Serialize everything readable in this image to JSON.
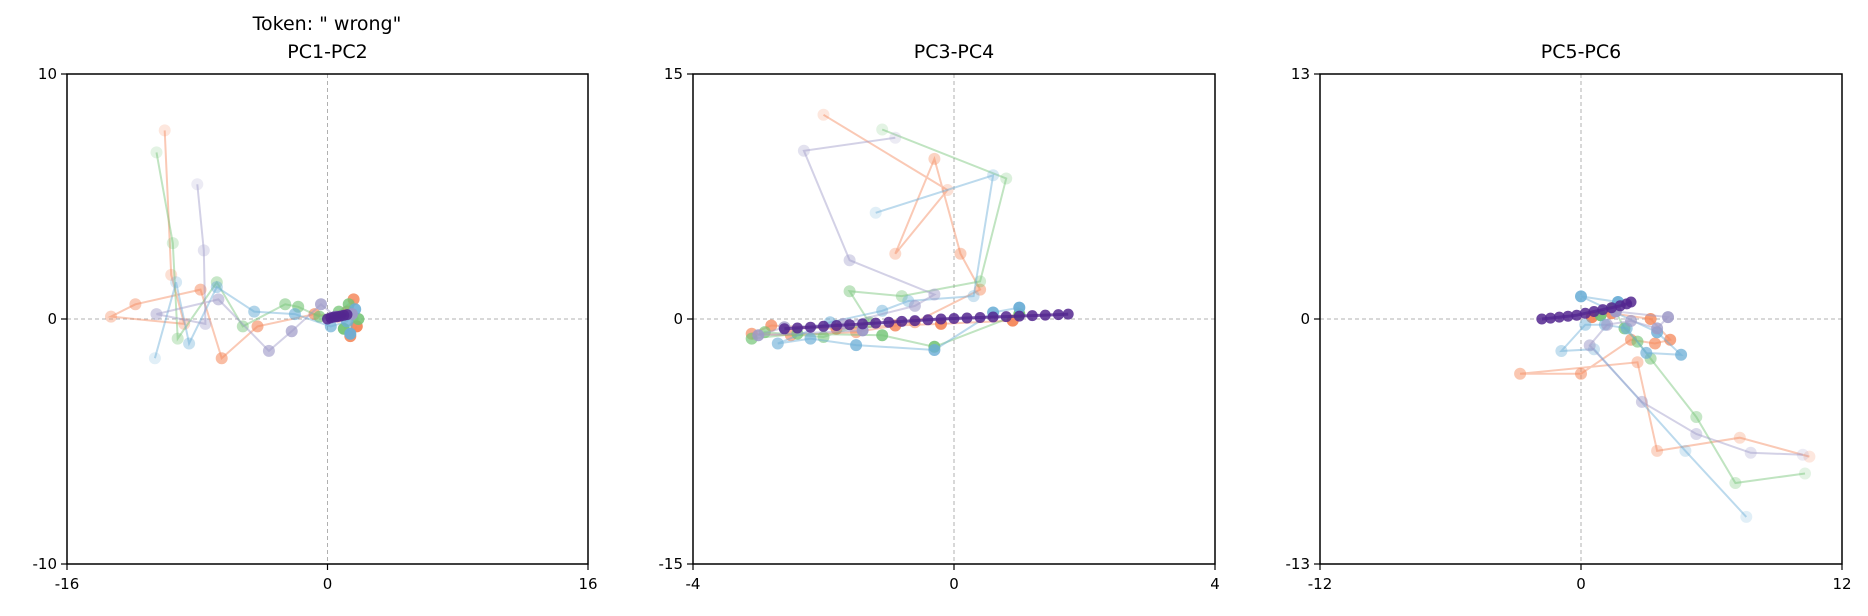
{
  "figure_title": "Token: \" wrong\"",
  "colors": {
    "orange": "#f4875a",
    "green": "#74c476",
    "blue": "#6baed6",
    "purple": "#9e9ac8",
    "dark_purple": "#54278f",
    "axis": "#000000",
    "crosshair": "#b0b0b0"
  },
  "chart_data": [
    {
      "type": "scatter",
      "title": "PC1-PC2",
      "xlim": [
        -16,
        16
      ],
      "ylim": [
        -10,
        10
      ],
      "xticks": [
        "-16",
        "0",
        "16"
      ],
      "yticks": [
        "-10",
        "0",
        "10"
      ],
      "grid": false,
      "series": [
        {
          "color": "#f4875a",
          "points": [
            [
              -10.0,
              7.7
            ],
            [
              -9.6,
              1.8
            ],
            [
              -8.8,
              -0.2
            ],
            [
              -13.3,
              0.1
            ],
            [
              -11.8,
              0.6
            ],
            [
              -7.8,
              1.2
            ],
            [
              -6.5,
              -1.6
            ],
            [
              -4.3,
              -0.3
            ],
            [
              -0.8,
              0.2
            ],
            [
              0.6,
              0.1
            ],
            [
              1.2,
              0.3
            ],
            [
              1.6,
              0.8
            ],
            [
              1.4,
              -0.7
            ],
            [
              1.8,
              -0.3
            ]
          ]
        },
        {
          "color": "#74c476",
          "points": [
            [
              -10.5,
              6.8
            ],
            [
              -9.5,
              3.1
            ],
            [
              -9.2,
              -0.8
            ],
            [
              -6.8,
              1.5
            ],
            [
              -5.2,
              -0.3
            ],
            [
              -2.6,
              0.6
            ],
            [
              -1.8,
              0.5
            ],
            [
              -0.5,
              0.1
            ],
            [
              0.7,
              0.3
            ],
            [
              1.3,
              0.6
            ],
            [
              1.9,
              0.0
            ],
            [
              1.0,
              -0.4
            ]
          ]
        },
        {
          "color": "#6baed6",
          "points": [
            [
              -10.6,
              -1.6
            ],
            [
              -9.3,
              1.5
            ],
            [
              -8.5,
              -1.0
            ],
            [
              -6.8,
              1.3
            ],
            [
              -4.5,
              0.3
            ],
            [
              -2.0,
              0.2
            ],
            [
              0.2,
              -0.3
            ],
            [
              1.2,
              -0.1
            ],
            [
              1.7,
              0.4
            ],
            [
              1.4,
              -0.6
            ]
          ]
        },
        {
          "color": "#9e9ac8",
          "points": [
            [
              -8.0,
              5.5
            ],
            [
              -7.6,
              2.8
            ],
            [
              -7.5,
              -0.2
            ],
            [
              -10.5,
              0.2
            ],
            [
              -6.7,
              0.8
            ],
            [
              -3.6,
              -1.3
            ],
            [
              -2.2,
              -0.5
            ],
            [
              -0.4,
              0.6
            ],
            [
              0.5,
              0.1
            ],
            [
              1.5,
              0.2
            ]
          ]
        },
        {
          "color": "#54278f",
          "points": [
            [
              0.0,
              0.0
            ],
            [
              0.2,
              0.05
            ],
            [
              0.4,
              0.08
            ],
            [
              0.6,
              0.1
            ],
            [
              0.8,
              0.12
            ],
            [
              1.0,
              0.15
            ],
            [
              1.2,
              0.18
            ]
          ]
        }
      ]
    },
    {
      "type": "scatter",
      "title": "PC3-PC4",
      "xlim": [
        -4,
        4
      ],
      "ylim": [
        -15,
        15
      ],
      "xticks": [
        "-4",
        "0",
        "4"
      ],
      "yticks": [
        "-15",
        "0",
        "15"
      ],
      "grid": false,
      "series": [
        {
          "color": "#f4875a",
          "points": [
            [
              -2.0,
              12.5
            ],
            [
              -0.1,
              7.9
            ],
            [
              -0.9,
              4.0
            ],
            [
              -0.3,
              9.8
            ],
            [
              0.1,
              4.0
            ],
            [
              0.4,
              1.8
            ],
            [
              -0.6,
              -0.2
            ],
            [
              -1.5,
              -0.8
            ],
            [
              -2.5,
              -1.0
            ],
            [
              -3.1,
              -0.9
            ],
            [
              -2.8,
              -0.4
            ],
            [
              -1.8,
              -0.6
            ],
            [
              -0.9,
              -0.4
            ],
            [
              -0.2,
              -0.3
            ],
            [
              0.9,
              -0.1
            ]
          ]
        },
        {
          "color": "#74c476",
          "points": [
            [
              -1.1,
              11.6
            ],
            [
              0.8,
              8.6
            ],
            [
              0.4,
              2.3
            ],
            [
              -0.8,
              1.4
            ],
            [
              -1.6,
              1.7
            ],
            [
              -1.3,
              -0.2
            ],
            [
              -2.0,
              -1.1
            ],
            [
              -2.9,
              -0.8
            ],
            [
              -3.1,
              -1.2
            ],
            [
              -2.4,
              -0.9
            ],
            [
              -1.1,
              -1.0
            ],
            [
              -0.3,
              -1.7
            ],
            [
              1.0,
              0.3
            ]
          ]
        },
        {
          "color": "#6baed6",
          "points": [
            [
              -1.2,
              6.5
            ],
            [
              0.6,
              8.8
            ],
            [
              0.3,
              1.4
            ],
            [
              -0.7,
              1.1
            ],
            [
              -1.1,
              0.5
            ],
            [
              -1.9,
              -0.2
            ],
            [
              -2.7,
              -1.5
            ],
            [
              -2.2,
              -1.2
            ],
            [
              -1.5,
              -1.6
            ],
            [
              -0.3,
              -1.9
            ],
            [
              0.6,
              0.4
            ],
            [
              1.0,
              0.7
            ]
          ]
        },
        {
          "color": "#9e9ac8",
          "points": [
            [
              -0.9,
              11.1
            ],
            [
              -2.3,
              10.3
            ],
            [
              -1.6,
              3.6
            ],
            [
              -0.3,
              1.5
            ],
            [
              -0.6,
              0.8
            ],
            [
              -1.7,
              -0.3
            ],
            [
              -2.6,
              -0.5
            ],
            [
              -3.0,
              -1.0
            ],
            [
              -1.4,
              -0.7
            ]
          ]
        },
        {
          "color": "#54278f",
          "points": [
            [
              -2.6,
              -0.6
            ],
            [
              -2.4,
              -0.55
            ],
            [
              -2.2,
              -0.5
            ],
            [
              -2.0,
              -0.45
            ],
            [
              -1.8,
              -0.4
            ],
            [
              -1.6,
              -0.35
            ],
            [
              -1.4,
              -0.3
            ],
            [
              -1.2,
              -0.25
            ],
            [
              -1.0,
              -0.2
            ],
            [
              -0.8,
              -0.15
            ],
            [
              -0.6,
              -0.1
            ],
            [
              -0.4,
              -0.05
            ],
            [
              -0.2,
              0.0
            ],
            [
              0.0,
              0.03
            ],
            [
              0.2,
              0.06
            ],
            [
              0.4,
              0.09
            ],
            [
              0.6,
              0.12
            ],
            [
              0.8,
              0.15
            ],
            [
              1.0,
              0.18
            ],
            [
              1.2,
              0.21
            ],
            [
              1.4,
              0.24
            ],
            [
              1.6,
              0.27
            ],
            [
              1.75,
              0.3
            ]
          ]
        }
      ]
    },
    {
      "type": "scatter",
      "title": "PC5-PC6",
      "xlim": [
        -12,
        12
      ],
      "ylim": [
        -13,
        13
      ],
      "xticks": [
        "-12",
        "0",
        "12"
      ],
      "yticks": [
        "-13",
        "0",
        "13"
      ],
      "grid": false,
      "series": [
        {
          "color": "#f4875a",
          "points": [
            [
              10.5,
              -7.3
            ],
            [
              7.3,
              -6.3
            ],
            [
              3.5,
              -7.0
            ],
            [
              2.6,
              -2.3
            ],
            [
              -2.8,
              -2.9
            ],
            [
              0.0,
              -2.9
            ],
            [
              2.3,
              -1.1
            ],
            [
              3.4,
              -1.3
            ],
            [
              4.1,
              -1.1
            ],
            [
              3.2,
              0.0
            ],
            [
              1.4,
              0.3
            ],
            [
              0.5,
              0.1
            ]
          ]
        },
        {
          "color": "#74c476",
          "points": [
            [
              10.3,
              -8.2
            ],
            [
              7.1,
              -8.7
            ],
            [
              5.3,
              -5.2
            ],
            [
              3.2,
              -2.1
            ],
            [
              2.6,
              -1.2
            ],
            [
              2.0,
              -0.5
            ],
            [
              1.5,
              0.6
            ],
            [
              0.9,
              0.2
            ]
          ]
        },
        {
          "color": "#6baed6",
          "points": [
            [
              7.6,
              -10.5
            ],
            [
              4.8,
              -7.0
            ],
            [
              0.6,
              -1.6
            ],
            [
              -0.9,
              -1.7
            ],
            [
              0.2,
              -0.3
            ],
            [
              1.1,
              -0.3
            ],
            [
              2.1,
              -0.5
            ],
            [
              3.0,
              -1.8
            ],
            [
              4.6,
              -1.9
            ],
            [
              3.5,
              -0.7
            ],
            [
              0.0,
              1.2
            ],
            [
              1.7,
              0.9
            ]
          ]
        },
        {
          "color": "#9e9ac8",
          "points": [
            [
              10.2,
              -7.2
            ],
            [
              7.8,
              -7.1
            ],
            [
              5.3,
              -6.1
            ],
            [
              2.8,
              -4.4
            ],
            [
              0.4,
              -1.4
            ],
            [
              1.2,
              -0.3
            ],
            [
              2.3,
              -0.1
            ],
            [
              3.5,
              -0.5
            ],
            [
              4.0,
              0.1
            ],
            [
              1.6,
              0.4
            ]
          ]
        },
        {
          "color": "#54278f",
          "points": [
            [
              -1.8,
              0.0
            ],
            [
              -1.4,
              0.05
            ],
            [
              -1.0,
              0.1
            ],
            [
              -0.6,
              0.15
            ],
            [
              -0.2,
              0.2
            ],
            [
              0.2,
              0.3
            ],
            [
              0.6,
              0.4
            ],
            [
              1.0,
              0.5
            ],
            [
              1.4,
              0.6
            ],
            [
              1.8,
              0.7
            ],
            [
              2.1,
              0.8
            ],
            [
              2.3,
              0.9
            ]
          ]
        }
      ]
    }
  ]
}
